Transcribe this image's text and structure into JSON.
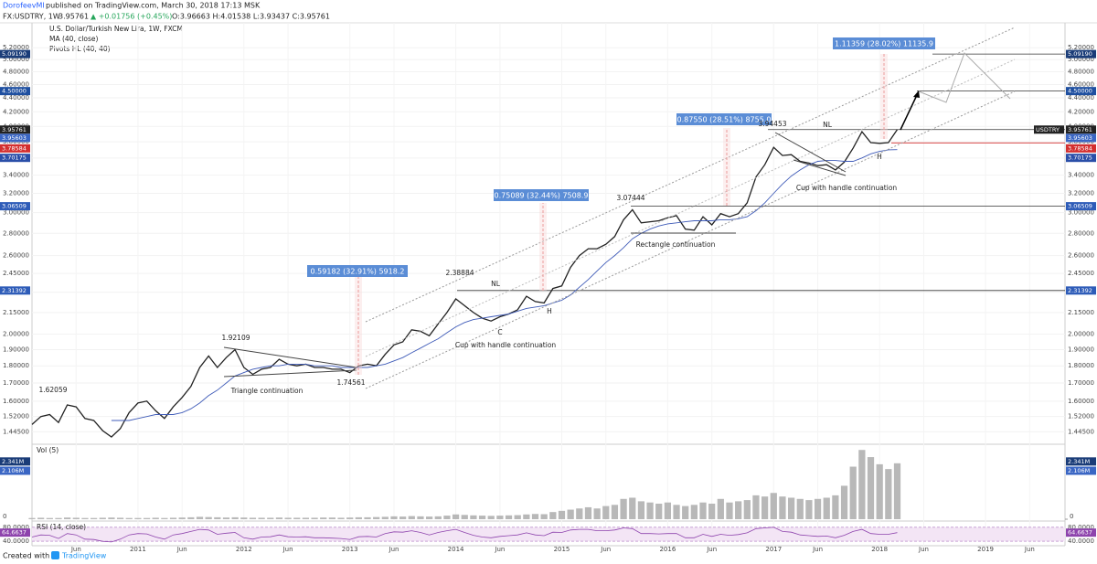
{
  "header": {
    "author": "DorofeevMI",
    "published": "published on TradingView.com, March 30, 2018 17:13 MSK",
    "symbol": "FX:USDTRY, 1W",
    "last": "3.95761",
    "change": "▲ +0.01756 (+0.45%)",
    "ohlc": "O:3.96663 H:4.01538 L:3.93437 C:3.95761"
  },
  "legend": {
    "title": "U.S. Dollar/Turkish New Lira, 1W, FXCM",
    "ma": "MA (40, close)",
    "pivots": "Pivots HL (40, 40)"
  },
  "chart_data": {
    "type": "line",
    "log_scale": true,
    "grid": true,
    "x": [
      "2010-01",
      "2010-02",
      "2010-03",
      "2010-04",
      "2010-05",
      "2010-06",
      "2010-07",
      "2010-08",
      "2010-09",
      "2010-10",
      "2010-11",
      "2010-12",
      "2011-01",
      "2011-02",
      "2011-03",
      "2011-04",
      "2011-05",
      "2011-06",
      "2011-07",
      "2011-08",
      "2011-09",
      "2011-10",
      "2011-11",
      "2011-12",
      "2012-01",
      "2012-02",
      "2012-03",
      "2012-04",
      "2012-05",
      "2012-06",
      "2012-07",
      "2012-08",
      "2012-09",
      "2012-10",
      "2012-11",
      "2012-12",
      "2013-01",
      "2013-02",
      "2013-03",
      "2013-04",
      "2013-05",
      "2013-06",
      "2013-07",
      "2013-08",
      "2013-09",
      "2013-10",
      "2013-11",
      "2013-12",
      "2014-01",
      "2014-02",
      "2014-03",
      "2014-04",
      "2014-05",
      "2014-06",
      "2014-07",
      "2014-08",
      "2014-09",
      "2014-10",
      "2014-11",
      "2014-12",
      "2015-01",
      "2015-02",
      "2015-03",
      "2015-04",
      "2015-05",
      "2015-06",
      "2015-07",
      "2015-08",
      "2015-09",
      "2015-10",
      "2015-11",
      "2015-12",
      "2016-01",
      "2016-02",
      "2016-03",
      "2016-04",
      "2016-05",
      "2016-06",
      "2016-07",
      "2016-08",
      "2016-09",
      "2016-10",
      "2016-11",
      "2016-12",
      "2017-01",
      "2017-02",
      "2017-03",
      "2017-04",
      "2017-05",
      "2017-06",
      "2017-07",
      "2017-08",
      "2017-09",
      "2017-10",
      "2017-11",
      "2017-12",
      "2018-01",
      "2018-02",
      "2018-03"
    ],
    "series": [
      {
        "name": "USDTRY",
        "color": "#222222",
        "values": [
          1.48,
          1.52,
          1.53,
          1.49,
          1.58,
          1.57,
          1.51,
          1.5,
          1.45,
          1.42,
          1.46,
          1.54,
          1.59,
          1.6,
          1.55,
          1.51,
          1.57,
          1.62,
          1.68,
          1.79,
          1.86,
          1.79,
          1.85,
          1.9,
          1.79,
          1.75,
          1.78,
          1.79,
          1.84,
          1.81,
          1.8,
          1.81,
          1.79,
          1.79,
          1.78,
          1.78,
          1.76,
          1.8,
          1.81,
          1.8,
          1.87,
          1.93,
          1.95,
          2.03,
          2.02,
          1.99,
          2.07,
          2.15,
          2.25,
          2.2,
          2.15,
          2.11,
          2.09,
          2.12,
          2.14,
          2.17,
          2.27,
          2.23,
          2.22,
          2.33,
          2.35,
          2.5,
          2.6,
          2.66,
          2.66,
          2.7,
          2.77,
          2.93,
          3.03,
          2.9,
          2.91,
          2.92,
          2.95,
          2.97,
          2.84,
          2.83,
          2.96,
          2.88,
          2.99,
          2.96,
          2.99,
          3.1,
          3.38,
          3.52,
          3.73,
          3.63,
          3.64,
          3.56,
          3.54,
          3.51,
          3.52,
          3.46,
          3.55,
          3.72,
          3.93,
          3.79,
          3.78,
          3.79,
          3.95761
        ]
      },
      {
        "name": "MA (40, close)",
        "color": "#3f5bb8",
        "values": [
          null,
          null,
          null,
          null,
          null,
          null,
          null,
          null,
          null,
          1.5,
          1.5,
          1.5,
          1.51,
          1.52,
          1.53,
          1.53,
          1.53,
          1.54,
          1.56,
          1.59,
          1.63,
          1.66,
          1.7,
          1.74,
          1.76,
          1.78,
          1.79,
          1.8,
          1.8,
          1.81,
          1.81,
          1.81,
          1.8,
          1.8,
          1.8,
          1.79,
          1.79,
          1.79,
          1.79,
          1.8,
          1.81,
          1.83,
          1.85,
          1.88,
          1.91,
          1.94,
          1.97,
          2.01,
          2.05,
          2.08,
          2.1,
          2.11,
          2.12,
          2.13,
          2.14,
          2.16,
          2.18,
          2.19,
          2.2,
          2.22,
          2.24,
          2.28,
          2.34,
          2.4,
          2.47,
          2.54,
          2.6,
          2.67,
          2.75,
          2.8,
          2.84,
          2.87,
          2.89,
          2.9,
          2.91,
          2.92,
          2.92,
          2.92,
          2.93,
          2.93,
          2.94,
          2.96,
          3.02,
          3.1,
          3.2,
          3.3,
          3.39,
          3.46,
          3.52,
          3.56,
          3.57,
          3.57,
          3.56,
          3.56,
          3.6,
          3.65,
          3.68,
          3.7,
          3.70175
        ]
      }
    ],
    "xlim": [
      "2010-01",
      "2019-10"
    ],
    "xticks": [
      {
        "value": "2010-06",
        "label": "Jun"
      },
      {
        "value": "2011-01",
        "label": "2011"
      },
      {
        "value": "2011-06",
        "label": "Jun"
      },
      {
        "value": "2012-01",
        "label": "2012"
      },
      {
        "value": "2012-06",
        "label": "Jun"
      },
      {
        "value": "2013-01",
        "label": "2013"
      },
      {
        "value": "2013-06",
        "label": "Jun"
      },
      {
        "value": "2014-01",
        "label": "2014"
      },
      {
        "value": "2014-06",
        "label": "Jun"
      },
      {
        "value": "2015-01",
        "label": "2015"
      },
      {
        "value": "2015-06",
        "label": "Jun"
      },
      {
        "value": "2016-01",
        "label": "2016"
      },
      {
        "value": "2016-06",
        "label": "Jun"
      },
      {
        "value": "2017-01",
        "label": "2017"
      },
      {
        "value": "2017-06",
        "label": "Jun"
      },
      {
        "value": "2018-01",
        "label": "2018"
      },
      {
        "value": "2018-06",
        "label": "Jun"
      },
      {
        "value": "2019-01",
        "label": "2019"
      },
      {
        "value": "2019-06",
        "label": "Jun"
      }
    ],
    "ylim": [
      1.39,
      5.65
    ],
    "yticks": [
      {
        "value": 5.2,
        "label": "5.20000"
      },
      {
        "value": 5.0,
        "label": "5.00000"
      },
      {
        "value": 4.8,
        "label": "4.80000"
      },
      {
        "value": 4.6,
        "label": "4.60000"
      },
      {
        "value": 4.4,
        "label": "4.40000"
      },
      {
        "value": 4.2,
        "label": "4.20000"
      },
      {
        "value": 4.0,
        "label": "4.00000"
      },
      {
        "value": 3.8,
        "label": "3.80000"
      },
      {
        "value": 3.6,
        "label": "3.60000"
      },
      {
        "value": 3.4,
        "label": "3.40000"
      },
      {
        "value": 3.2,
        "label": "3.20000"
      },
      {
        "value": 3.0,
        "label": "3.00000"
      },
      {
        "value": 2.8,
        "label": "2.80000"
      },
      {
        "value": 2.6,
        "label": "2.60000"
      },
      {
        "value": 2.45,
        "label": "2.45000"
      },
      {
        "value": 2.3,
        "label": "2.30000"
      },
      {
        "value": 2.15,
        "label": "2.15000"
      },
      {
        "value": 2.0,
        "label": "2.00000"
      },
      {
        "value": 1.9,
        "label": "1.90000"
      },
      {
        "value": 1.8,
        "label": "1.80000"
      },
      {
        "value": 1.7,
        "label": "1.70000"
      },
      {
        "value": 1.6,
        "label": "1.60000"
      },
      {
        "value": 1.52,
        "label": "1.52000"
      },
      {
        "value": 1.445,
        "label": "1.44500"
      }
    ],
    "levels": [
      {
        "value": 5.0919,
        "label": "5.09190",
        "color": "#1a3c78"
      },
      {
        "value": 4.5,
        "label": "4.50000",
        "color": "#1e4fa0"
      },
      {
        "value": 3.95761,
        "label": "3.95761",
        "color": "#222222"
      },
      {
        "value": 3.95603,
        "label": "3.95603",
        "color": "#3a66c4"
      },
      {
        "value": 3.78584,
        "label": "3.78584",
        "color": "#d32f2f"
      },
      {
        "value": 3.70175,
        "label": "3.70175",
        "color": "#2a4ea8"
      },
      {
        "value": 3.06509,
        "label": "3.06509",
        "color": "#2e5cb8"
      },
      {
        "value": 2.31392,
        "label": "2.31392",
        "color": "#2e5cb8"
      }
    ],
    "symbol_tag": "USDTRY",
    "pivots": [
      1.62059,
      1.92109,
      1.74561,
      2.38884,
      3.07444,
      3.94453
    ],
    "measurements": [
      "0.59182 (32.91%) 5918.2",
      "0.75089 (32.44%) 7508.9",
      "0.87550 (28.51%) 8755.0",
      "1.11359 (28.02%) 11135.9"
    ],
    "patterns": [
      "Triangle continuation",
      "Cup with handle continuation",
      "Rectangle continuation",
      "Cup with handle continuation"
    ],
    "marks": [
      "NL",
      "H",
      "C",
      "NL",
      "H"
    ],
    "volume": {
      "title": "Vol (5)",
      "color": "#b8b8b8",
      "values": [
        0.05,
        0.06,
        0.05,
        0.05,
        0.07,
        0.06,
        0.05,
        0.05,
        0.06,
        0.07,
        0.06,
        0.05,
        0.05,
        0.05,
        0.06,
        0.05,
        0.06,
        0.07,
        0.08,
        0.1,
        0.09,
        0.08,
        0.07,
        0.08,
        0.07,
        0.06,
        0.06,
        0.06,
        0.07,
        0.06,
        0.06,
        0.06,
        0.06,
        0.07,
        0.07,
        0.06,
        0.07,
        0.08,
        0.08,
        0.09,
        0.1,
        0.12,
        0.11,
        0.13,
        0.12,
        0.11,
        0.12,
        0.15,
        0.2,
        0.18,
        0.16,
        0.15,
        0.14,
        0.15,
        0.16,
        0.17,
        0.2,
        0.22,
        0.21,
        0.3,
        0.35,
        0.4,
        0.45,
        0.5,
        0.45,
        0.55,
        0.6,
        0.85,
        0.9,
        0.75,
        0.7,
        0.65,
        0.7,
        0.6,
        0.55,
        0.6,
        0.7,
        0.65,
        0.85,
        0.7,
        0.75,
        0.8,
        1.0,
        0.95,
        1.1,
        0.95,
        0.9,
        0.85,
        0.8,
        0.85,
        0.9,
        1.0,
        1.4,
        2.2,
        2.9,
        2.6,
        2.3,
        2.1,
        2.341
      ],
      "ylim": [
        0,
        3.1
      ],
      "yticks": [
        0
      ],
      "badges": [
        {
          "value": 2.341,
          "label": "2.341M",
          "color": "#1a3c78"
        },
        {
          "value": 2.106,
          "label": "2.106M",
          "color": "#3a66c4"
        }
      ]
    },
    "rsi": {
      "title": "RSI (14, close)",
      "color": "#8e44ad",
      "values": [
        52,
        58,
        57,
        48,
        62,
        58,
        46,
        45,
        40,
        38,
        46,
        58,
        62,
        61,
        52,
        46,
        58,
        62,
        68,
        74,
        72,
        60,
        63,
        65,
        50,
        46,
        52,
        53,
        58,
        53,
        52,
        53,
        50,
        50,
        49,
        48,
        45,
        53,
        54,
        52,
        62,
        67,
        66,
        70,
        65,
        58,
        65,
        70,
        74,
        65,
        57,
        52,
        50,
        54,
        56,
        58,
        64,
        58,
        56,
        66,
        65,
        72,
        74,
        74,
        70,
        70,
        72,
        78,
        76,
        62,
        62,
        61,
        62,
        62,
        50,
        50,
        60,
        54,
        60,
        57,
        59,
        64,
        76,
        78,
        80,
        68,
        66,
        58,
        56,
        54,
        55,
        50,
        57,
        68,
        74,
        62,
        60,
        60,
        64.6637
      ],
      "ylim": [
        30,
        95
      ],
      "yticks": [
        {
          "value": 80,
          "label": "80.0000"
        },
        {
          "value": 40,
          "label": "40.0000"
        }
      ],
      "badge": {
        "value": 64.6637,
        "label": "64.6637",
        "color": "#8e44ad"
      }
    }
  },
  "footer": {
    "text": "Created with",
    "brand": "TradingView"
  }
}
